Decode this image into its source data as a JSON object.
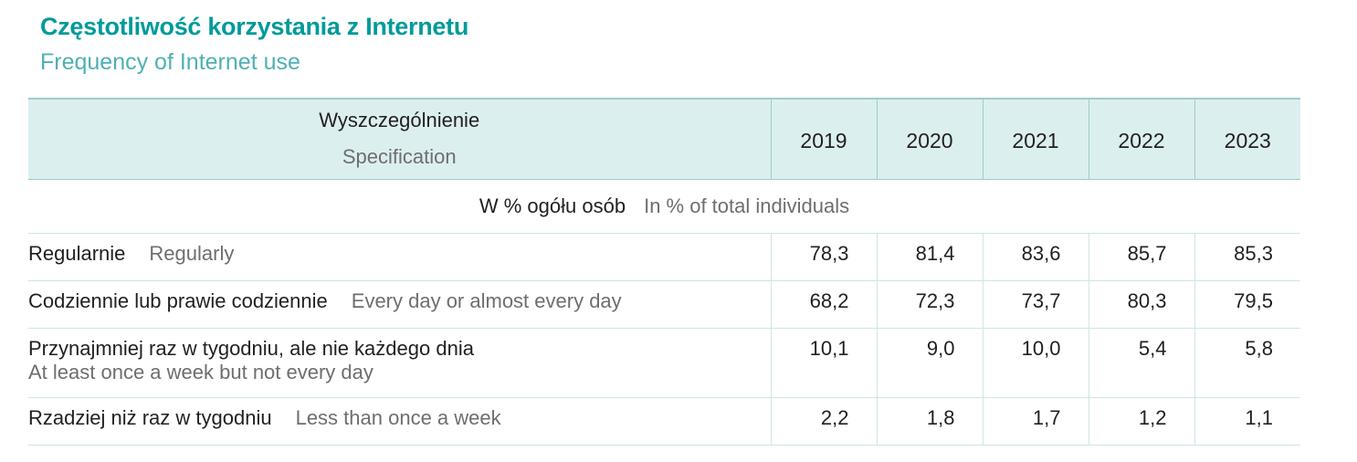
{
  "title": {
    "pl": "Częstotliwość korzystania z Internetu",
    "en": "Frequency of Internet use"
  },
  "table": {
    "header": {
      "spec_pl": "Wyszczególnienie",
      "spec_en": "Specification",
      "years": [
        "2019",
        "2020",
        "2021",
        "2022",
        "2023"
      ]
    },
    "unit": {
      "pl": "W % ogółu osób",
      "en": "In % of total individuals"
    },
    "rows": [
      {
        "label_pl": "Regularnie",
        "label_en": "Regularly",
        "values": [
          "78,3",
          "81,4",
          "83,6",
          "85,7",
          "85,3"
        ]
      },
      {
        "label_pl": "Codziennie lub prawie codziennie",
        "label_en": "Every day or almost every day",
        "values": [
          "68,2",
          "72,3",
          "73,7",
          "80,3",
          "79,5"
        ]
      },
      {
        "label_pl": "Przynajmniej raz w tygodniu, ale nie każdego dnia",
        "label_en": "At least once a week but not every day",
        "values": [
          "10,1",
          "9,0",
          "10,0",
          "5,4",
          "5,8"
        ]
      },
      {
        "label_pl": "Rzadziej niż raz w tygodniu",
        "label_en": "Less than once a week",
        "values": [
          "2,2",
          "1,8",
          "1,7",
          "1,2",
          "1,1"
        ]
      }
    ]
  }
}
